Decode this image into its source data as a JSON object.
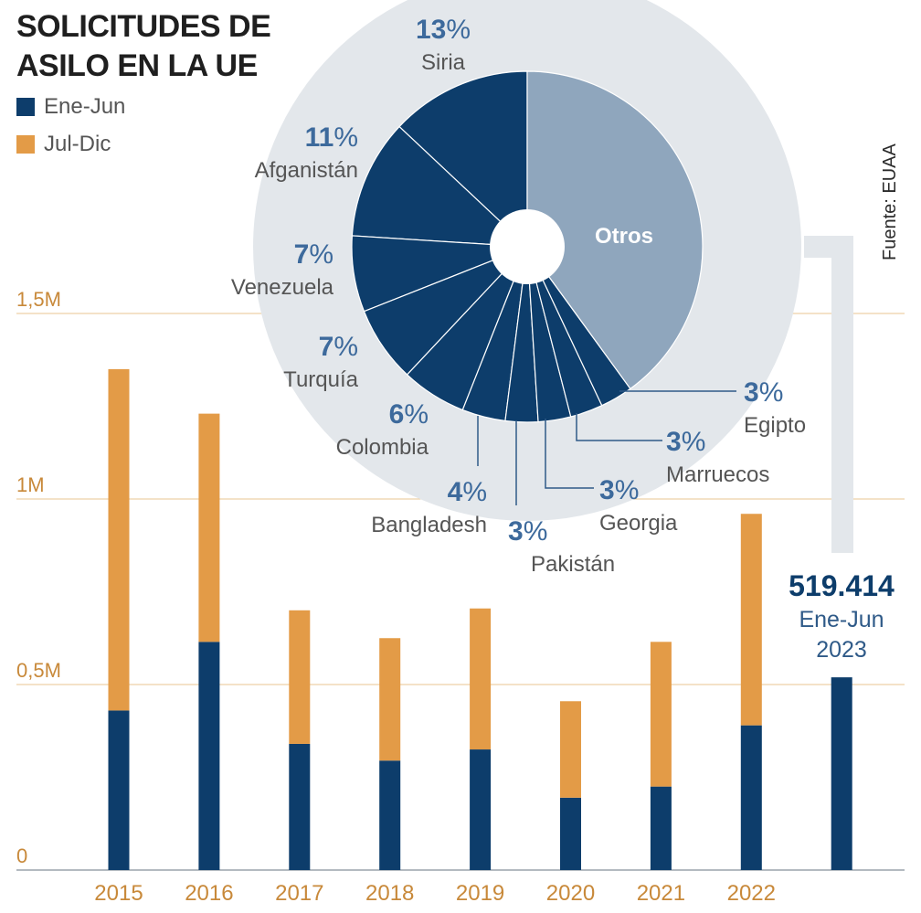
{
  "title_line1": "SOLICITUDES DE",
  "title_line2": "ASILO EN LA UE",
  "source": "Fuente: EUAA",
  "colors": {
    "first_half": "#0d3d6b",
    "second_half": "#e39b47",
    "pie_dark": "#0d3d6b",
    "pie_other": "#8fa6bd",
    "pie_bg": "#e3e7eb",
    "pct_text": "#3d6a9c",
    "label_text": "#555555",
    "gridline": "#e8c690",
    "axis_text": "#c8893a"
  },
  "callout": {
    "value": "519.414",
    "line2": "Ene-Jun",
    "line3": "2023"
  },
  "chart_data": [
    {
      "type": "bar",
      "stacked": true,
      "categories": [
        "2015",
        "2016",
        "2017",
        "2018",
        "2019",
        "2020",
        "2021",
        "2022",
        ""
      ],
      "series": [
        {
          "name": "Ene-Jun",
          "values": [
            430000,
            615000,
            340000,
            295000,
            325000,
            195000,
            225000,
            390000,
            519414
          ]
        },
        {
          "name": "Jul-Dic",
          "values": [
            920000,
            615000,
            360000,
            330000,
            380000,
            260000,
            390000,
            570000,
            0
          ]
        }
      ],
      "yticks": [
        {
          "value": 0,
          "label": "0"
        },
        {
          "value": 500000,
          "label": "0,5M"
        },
        {
          "value": 1000000,
          "label": "1M"
        },
        {
          "value": 1500000,
          "label": "1,5M"
        }
      ],
      "ylim": [
        0,
        1500000
      ],
      "legend_position": "top-left"
    },
    {
      "type": "pie",
      "donut": true,
      "slices": [
        {
          "label": "Siria",
          "pct_num": "13",
          "pct_sign": "%",
          "value": 13
        },
        {
          "label": "Afganistán",
          "pct_num": "11",
          "pct_sign": "%",
          "value": 11
        },
        {
          "label": "Venezuela",
          "pct_num": "7",
          "pct_sign": "%",
          "value": 7
        },
        {
          "label": "Turquía",
          "pct_num": "7",
          "pct_sign": "%",
          "value": 7
        },
        {
          "label": "Colombia",
          "pct_num": "6",
          "pct_sign": "%",
          "value": 6
        },
        {
          "label": "Bangladesh",
          "pct_num": "4",
          "pct_sign": "%",
          "value": 4
        },
        {
          "label": "Pakistán",
          "pct_num": "3",
          "pct_sign": "%",
          "value": 3
        },
        {
          "label": "Georgia",
          "pct_num": "3",
          "pct_sign": "%",
          "value": 3
        },
        {
          "label": "Marruecos",
          "pct_num": "3",
          "pct_sign": "%",
          "value": 3
        },
        {
          "label": "Egipto",
          "pct_num": "3",
          "pct_sign": "%",
          "value": 3
        },
        {
          "label": "Otros",
          "pct_num": "",
          "pct_sign": "",
          "value": 40
        }
      ]
    }
  ]
}
